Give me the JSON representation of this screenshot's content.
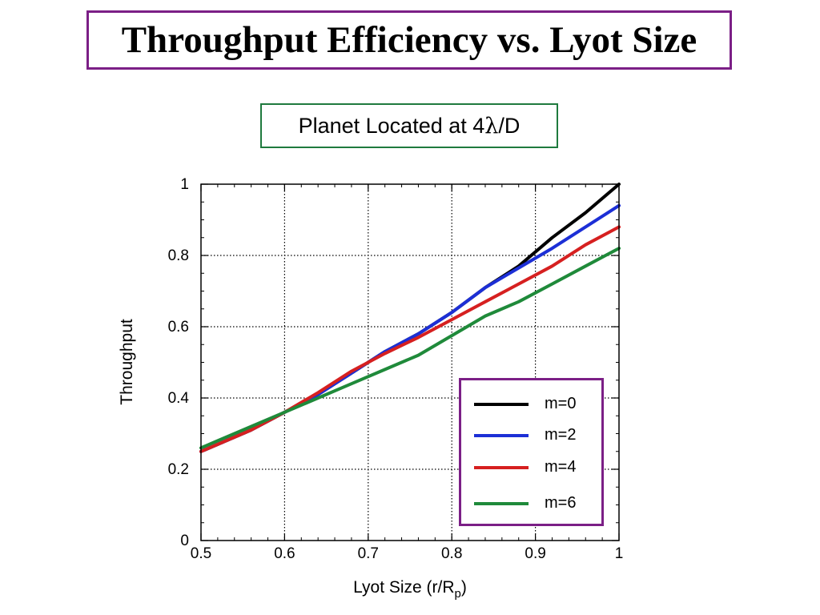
{
  "title": "Throughput Efficiency vs. Lyot Size",
  "subtitle": {
    "prefix": "Planet Located at 4",
    "symbol": "λ",
    "suffix": "/D"
  },
  "chart_data": {
    "type": "line",
    "xlabel": "Lyot Size (r/R",
    "xlabel_sub": "p",
    "xlabel_close": ")",
    "ylabel": "Throughput",
    "xlim": [
      0.5,
      1.0
    ],
    "ylim": [
      0,
      1.0
    ],
    "x_ticks": [
      0.5,
      0.6,
      0.7,
      0.8,
      0.9,
      1.0
    ],
    "x_tick_labels": [
      "0.5",
      "0.6",
      "0.7",
      "0.8",
      "0.9",
      "1"
    ],
    "y_ticks": [
      0,
      0.2,
      0.4,
      0.6,
      0.8,
      1.0
    ],
    "y_tick_labels": [
      "0",
      "0.2",
      "0.4",
      "0.6",
      "0.8",
      "1"
    ],
    "grid": true,
    "legend_position": "bottom-right",
    "series": [
      {
        "name": "m=0",
        "color": "#000000",
        "x": [
          0.5,
          0.52,
          0.56,
          0.6,
          0.64,
          0.68,
          0.72,
          0.76,
          0.8,
          0.84,
          0.88,
          0.92,
          0.96,
          1.0
        ],
        "y": [
          0.25,
          0.27,
          0.31,
          0.36,
          0.41,
          0.47,
          0.53,
          0.58,
          0.64,
          0.71,
          0.77,
          0.85,
          0.92,
          1.0
        ]
      },
      {
        "name": "m=2",
        "color": "#1c2fd6",
        "x": [
          0.5,
          0.52,
          0.56,
          0.6,
          0.64,
          0.68,
          0.72,
          0.76,
          0.8,
          0.84,
          0.88,
          0.92,
          0.96,
          1.0
        ],
        "y": [
          0.25,
          0.27,
          0.31,
          0.36,
          0.41,
          0.47,
          0.53,
          0.58,
          0.64,
          0.71,
          0.765,
          0.82,
          0.88,
          0.94
        ]
      },
      {
        "name": "m=4",
        "color": "#d62020",
        "x": [
          0.5,
          0.52,
          0.56,
          0.6,
          0.64,
          0.68,
          0.72,
          0.76,
          0.8,
          0.84,
          0.88,
          0.92,
          0.96,
          1.0
        ],
        "y": [
          0.25,
          0.27,
          0.31,
          0.36,
          0.415,
          0.475,
          0.525,
          0.57,
          0.62,
          0.67,
          0.72,
          0.77,
          0.83,
          0.88
        ]
      },
      {
        "name": "m=6",
        "color": "#1f8a3a",
        "x": [
          0.5,
          0.52,
          0.56,
          0.6,
          0.64,
          0.68,
          0.72,
          0.76,
          0.8,
          0.84,
          0.88,
          0.92,
          0.96,
          1.0
        ],
        "y": [
          0.26,
          0.28,
          0.32,
          0.36,
          0.4,
          0.44,
          0.48,
          0.52,
          0.575,
          0.63,
          0.67,
          0.72,
          0.77,
          0.82
        ]
      }
    ]
  }
}
